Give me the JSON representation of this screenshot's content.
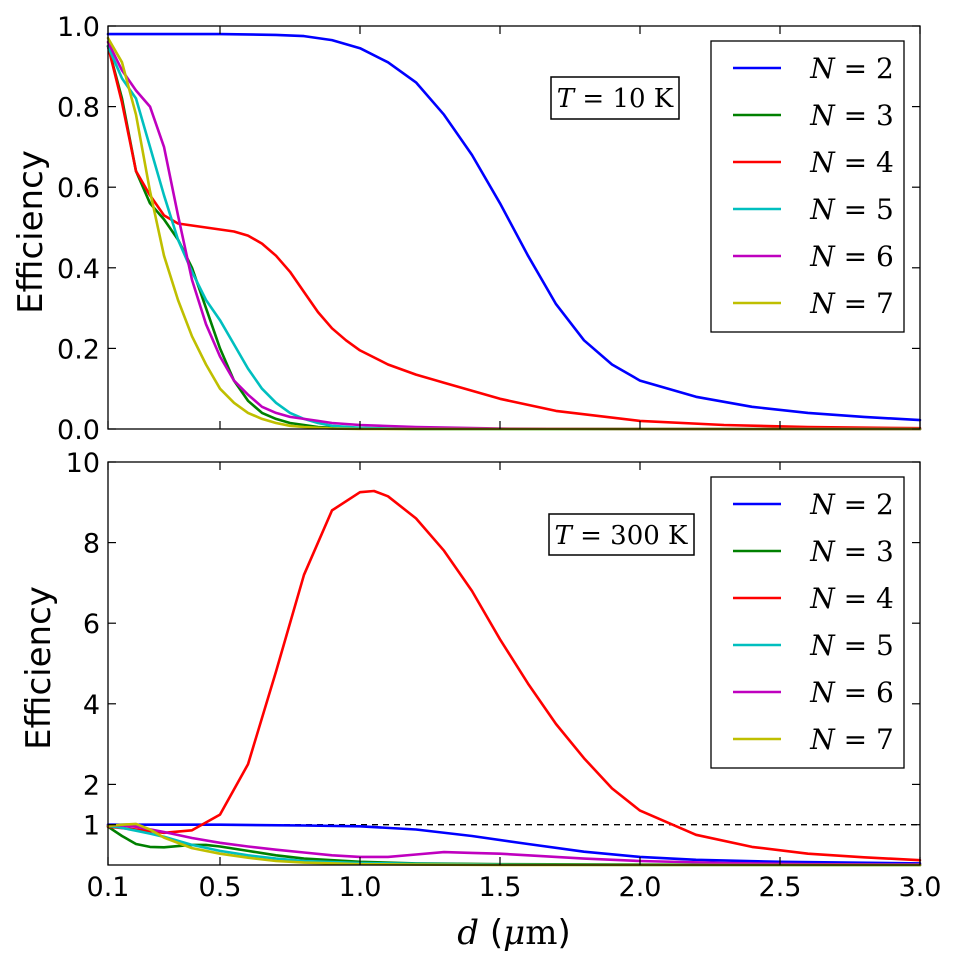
{
  "chart_data": [
    {
      "type": "line",
      "panel": "top",
      "title": "",
      "annotation": {
        "var": "T",
        "eq": " = ",
        "value": "10",
        "unit": " K"
      },
      "xlabel": "",
      "ylabel": "Efficiency",
      "xlim": [
        0.1,
        3.0
      ],
      "ylim": [
        0.0,
        1.0
      ],
      "yticks": [
        "0.0",
        "0.2",
        "0.4",
        "0.6",
        "0.8",
        "1.0"
      ],
      "ytick_values": [
        0.0,
        0.2,
        0.4,
        0.6,
        0.8,
        1.0
      ],
      "legend_position": "top-right",
      "series": [
        {
          "name": "N=2",
          "var": "N",
          "eq": " = ",
          "num": "2",
          "color": "#0000ff",
          "x": [
            0.1,
            0.3,
            0.5,
            0.7,
            0.8,
            0.9,
            1.0,
            1.1,
            1.2,
            1.3,
            1.4,
            1.5,
            1.6,
            1.7,
            1.8,
            1.9,
            2.0,
            2.2,
            2.4,
            2.6,
            2.8,
            3.0
          ],
          "y": [
            0.98,
            0.98,
            0.98,
            0.978,
            0.975,
            0.965,
            0.945,
            0.91,
            0.86,
            0.78,
            0.68,
            0.56,
            0.43,
            0.31,
            0.22,
            0.16,
            0.12,
            0.08,
            0.055,
            0.04,
            0.03,
            0.022
          ]
        },
        {
          "name": "N=3",
          "var": "N",
          "eq": " = ",
          "num": "3",
          "color": "#008000",
          "x": [
            0.1,
            0.15,
            0.2,
            0.25,
            0.3,
            0.35,
            0.4,
            0.45,
            0.5,
            0.55,
            0.6,
            0.65,
            0.7,
            0.75,
            0.8,
            0.85,
            0.9,
            1.0,
            1.2,
            1.5,
            2.0,
            3.0
          ],
          "y": [
            0.95,
            0.82,
            0.64,
            0.56,
            0.52,
            0.47,
            0.4,
            0.3,
            0.2,
            0.12,
            0.07,
            0.04,
            0.025,
            0.015,
            0.01,
            0.005,
            0.003,
            0.001,
            0.0,
            0.0,
            0.0,
            0.0
          ]
        },
        {
          "name": "N=4",
          "var": "N",
          "eq": " = ",
          "num": "4",
          "color": "#ff0000",
          "x": [
            0.1,
            0.15,
            0.2,
            0.25,
            0.3,
            0.35,
            0.4,
            0.45,
            0.5,
            0.55,
            0.6,
            0.65,
            0.7,
            0.75,
            0.8,
            0.85,
            0.9,
            0.95,
            1.0,
            1.1,
            1.2,
            1.3,
            1.5,
            1.7,
            2.0,
            2.3,
            2.6,
            3.0
          ],
          "y": [
            0.95,
            0.81,
            0.64,
            0.58,
            0.53,
            0.51,
            0.505,
            0.5,
            0.495,
            0.49,
            0.48,
            0.46,
            0.43,
            0.39,
            0.34,
            0.29,
            0.25,
            0.22,
            0.195,
            0.16,
            0.135,
            0.115,
            0.075,
            0.045,
            0.02,
            0.01,
            0.005,
            0.002
          ]
        },
        {
          "name": "N=5",
          "var": "N",
          "eq": " = ",
          "num": "5",
          "color": "#00bfbf",
          "x": [
            0.1,
            0.15,
            0.2,
            0.25,
            0.3,
            0.35,
            0.4,
            0.45,
            0.5,
            0.55,
            0.6,
            0.65,
            0.7,
            0.75,
            0.8,
            0.85,
            0.9,
            1.0,
            1.2,
            1.5,
            2.0,
            3.0
          ],
          "y": [
            0.95,
            0.87,
            0.82,
            0.7,
            0.58,
            0.47,
            0.39,
            0.32,
            0.27,
            0.21,
            0.15,
            0.1,
            0.065,
            0.04,
            0.025,
            0.015,
            0.008,
            0.003,
            0.0,
            0.0,
            0.0,
            0.0
          ]
        },
        {
          "name": "N=6",
          "var": "N",
          "eq": " = ",
          "num": "6",
          "color": "#bf00bf",
          "x": [
            0.1,
            0.15,
            0.2,
            0.25,
            0.3,
            0.35,
            0.4,
            0.45,
            0.5,
            0.55,
            0.6,
            0.65,
            0.7,
            0.75,
            0.8,
            0.85,
            0.9,
            1.0,
            1.2,
            1.5,
            2.0,
            3.0
          ],
          "y": [
            0.96,
            0.89,
            0.84,
            0.8,
            0.7,
            0.53,
            0.37,
            0.26,
            0.18,
            0.12,
            0.085,
            0.055,
            0.04,
            0.03,
            0.025,
            0.02,
            0.015,
            0.01,
            0.005,
            0.001,
            0.0,
            0.0
          ]
        },
        {
          "name": "N=7",
          "var": "N",
          "eq": " = ",
          "num": "7",
          "color": "#bfbf00",
          "x": [
            0.1,
            0.15,
            0.2,
            0.25,
            0.3,
            0.35,
            0.4,
            0.45,
            0.5,
            0.55,
            0.6,
            0.65,
            0.7,
            0.75,
            0.8,
            0.85,
            0.9,
            1.0,
            1.2,
            1.5,
            2.0,
            3.0
          ],
          "y": [
            0.97,
            0.91,
            0.78,
            0.59,
            0.43,
            0.32,
            0.23,
            0.16,
            0.1,
            0.065,
            0.04,
            0.025,
            0.015,
            0.008,
            0.005,
            0.003,
            0.001,
            0.0,
            0.0,
            0.0,
            0.0,
            0.0
          ]
        }
      ]
    },
    {
      "type": "line",
      "panel": "bottom",
      "title": "",
      "annotation": {
        "var": "T",
        "eq": " = ",
        "value": "300",
        "unit": " K"
      },
      "xlabel": {
        "var": "d",
        "rest": " (",
        "mu": "μ",
        "unit": "m",
        "close": ")"
      },
      "ylabel": "Efficiency",
      "xlim": [
        0.1,
        3.0
      ],
      "ylim": [
        0.0,
        10.0
      ],
      "yticks": [
        "1",
        "2",
        "4",
        "6",
        "8",
        "10"
      ],
      "ytick_values": [
        1,
        2,
        4,
        6,
        8,
        10
      ],
      "xticks": [
        "0.1",
        "0.5",
        "1.0",
        "1.5",
        "2.0",
        "2.5",
        "3.0"
      ],
      "xtick_values": [
        0.1,
        0.5,
        1.0,
        1.5,
        2.0,
        2.5,
        3.0
      ],
      "reference_line": {
        "y": 1.0,
        "style": "dashed"
      },
      "legend_position": "top-right",
      "series": [
        {
          "name": "N=2",
          "var": "N",
          "eq": " = ",
          "num": "2",
          "color": "#0000ff",
          "x": [
            0.1,
            0.5,
            0.8,
            1.0,
            1.2,
            1.4,
            1.6,
            1.8,
            2.0,
            2.2,
            2.5,
            3.0
          ],
          "y": [
            1.0,
            1.0,
            0.98,
            0.96,
            0.88,
            0.72,
            0.52,
            0.33,
            0.2,
            0.13,
            0.08,
            0.04
          ]
        },
        {
          "name": "N=3",
          "var": "N",
          "eq": " = ",
          "num": "3",
          "color": "#008000",
          "x": [
            0.1,
            0.15,
            0.2,
            0.25,
            0.3,
            0.35,
            0.4,
            0.45,
            0.5,
            0.6,
            0.7,
            0.8,
            1.0,
            1.2,
            1.5,
            2.0,
            3.0
          ],
          "y": [
            0.95,
            0.72,
            0.52,
            0.45,
            0.44,
            0.47,
            0.5,
            0.5,
            0.46,
            0.35,
            0.24,
            0.16,
            0.08,
            0.04,
            0.02,
            0.01,
            0.0
          ]
        },
        {
          "name": "N=4",
          "var": "N",
          "eq": " = ",
          "num": "4",
          "color": "#ff0000",
          "x": [
            0.1,
            0.2,
            0.3,
            0.4,
            0.5,
            0.6,
            0.7,
            0.8,
            0.9,
            1.0,
            1.05,
            1.1,
            1.2,
            1.3,
            1.4,
            1.5,
            1.6,
            1.7,
            1.8,
            1.9,
            2.0,
            2.2,
            2.4,
            2.6,
            2.8,
            3.0
          ],
          "y": [
            0.95,
            0.88,
            0.8,
            0.86,
            1.25,
            2.5,
            4.8,
            7.2,
            8.8,
            9.25,
            9.28,
            9.15,
            8.6,
            7.8,
            6.8,
            5.6,
            4.5,
            3.5,
            2.65,
            1.9,
            1.35,
            0.75,
            0.45,
            0.28,
            0.19,
            0.12
          ]
        },
        {
          "name": "N=5",
          "var": "N",
          "eq": " = ",
          "num": "5",
          "color": "#00bfbf",
          "x": [
            0.1,
            0.15,
            0.2,
            0.25,
            0.3,
            0.4,
            0.5,
            0.6,
            0.7,
            0.8,
            1.0,
            1.2,
            1.5,
            2.0,
            3.0
          ],
          "y": [
            0.97,
            0.92,
            0.85,
            0.78,
            0.7,
            0.5,
            0.35,
            0.24,
            0.16,
            0.1,
            0.05,
            0.03,
            0.01,
            0.0,
            0.0
          ]
        },
        {
          "name": "N=6",
          "var": "N",
          "eq": " = ",
          "num": "6",
          "color": "#bf00bf",
          "x": [
            0.1,
            0.15,
            0.2,
            0.3,
            0.4,
            0.5,
            0.6,
            0.7,
            0.8,
            0.9,
            1.0,
            1.1,
            1.2,
            1.3,
            1.4,
            1.5,
            1.6,
            1.8,
            2.0,
            2.3,
            2.6,
            3.0
          ],
          "y": [
            0.98,
            0.98,
            0.95,
            0.82,
            0.67,
            0.55,
            0.46,
            0.38,
            0.31,
            0.24,
            0.2,
            0.2,
            0.26,
            0.32,
            0.3,
            0.28,
            0.24,
            0.16,
            0.1,
            0.05,
            0.02,
            0.01
          ]
        },
        {
          "name": "N=7",
          "var": "N",
          "eq": " = ",
          "num": "7",
          "color": "#bfbf00",
          "x": [
            0.1,
            0.15,
            0.2,
            0.25,
            0.3,
            0.4,
            0.5,
            0.6,
            0.7,
            0.8,
            1.0,
            1.2,
            1.5,
            2.0,
            3.0
          ],
          "y": [
            0.97,
            1.0,
            1.02,
            0.88,
            0.68,
            0.42,
            0.28,
            0.18,
            0.1,
            0.06,
            0.02,
            0.01,
            0.0,
            0.0,
            0.0
          ]
        }
      ]
    }
  ]
}
